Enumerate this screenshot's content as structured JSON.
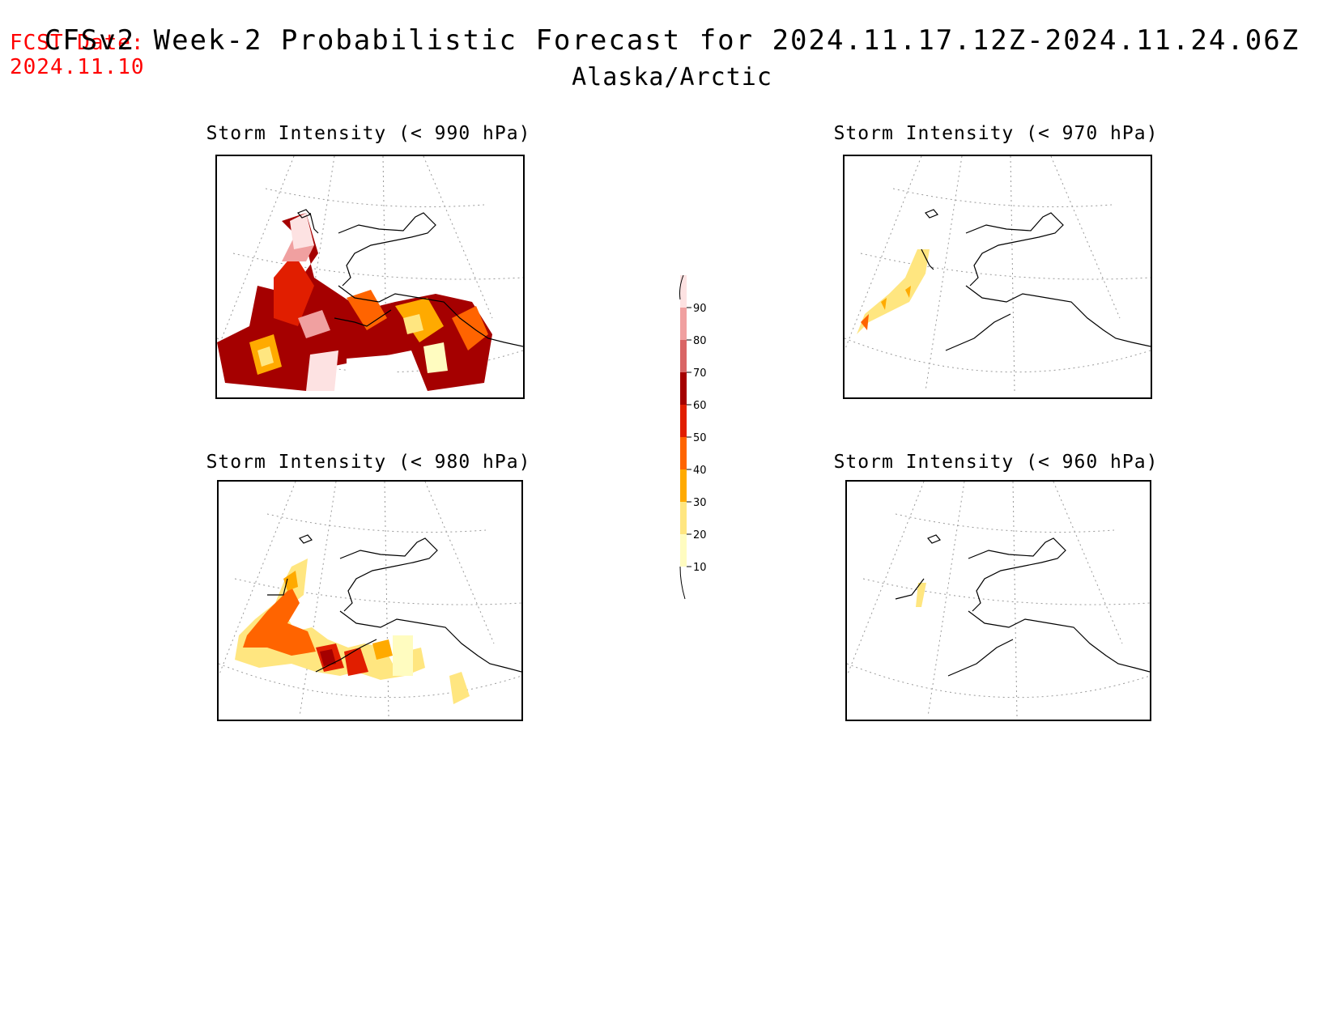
{
  "header": {
    "fcst_label": "FCST Date:",
    "fcst_date": "2024.11.10",
    "title": "CFSv2 Week-2 Probabilistic Forecast for 2024.11.17.12Z-2024.11.24.06Z",
    "subtitle": "Alaska/Arctic"
  },
  "panels": {
    "p990": {
      "title": "Storm Intensity (< 990 hPa)"
    },
    "p970": {
      "title": "Storm Intensity (< 970 hPa)"
    },
    "p980": {
      "title": "Storm Intensity (< 980 hPa)"
    },
    "p960": {
      "title": "Storm Intensity (< 960 hPa)"
    }
  },
  "colorbar": {
    "levels": [
      "10",
      "20",
      "30",
      "40",
      "50",
      "60",
      "70",
      "80",
      "90"
    ],
    "colors": [
      "#fffcc0",
      "#ffe680",
      "#ffaa00",
      "#ff6400",
      "#e11e00",
      "#a50000",
      "#d96565",
      "#f0a0a0",
      "#fde2e2"
    ]
  }
}
